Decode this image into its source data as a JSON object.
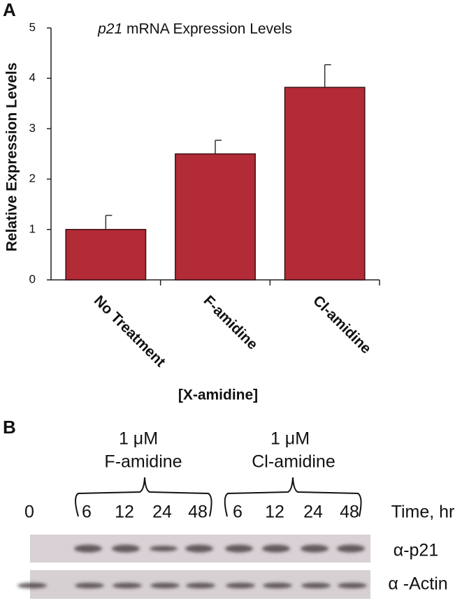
{
  "chart_data": {
    "type": "bar",
    "panel_label": "A",
    "title": "p21 mRNA Expression Levels",
    "y_label": "Relative Expression Levels",
    "x_label": "[X-amidine]",
    "categories": [
      "No Treatment",
      "F-amidine",
      "Cl-amidine"
    ],
    "values": [
      1.0,
      2.5,
      3.82
    ],
    "errors": [
      0.28,
      0.27,
      0.45
    ],
    "color": "#b32b37",
    "ylim": [
      0,
      5
    ],
    "yticks": [
      0,
      1,
      2,
      3,
      4,
      5
    ]
  },
  "panel_b": {
    "label": "B",
    "groups": [
      {
        "concentration": "1 μM",
        "name": "F-amidine"
      },
      {
        "concentration": "1 μM",
        "name": "Cl-amidine"
      }
    ],
    "lanes": [
      "0",
      "6",
      "12",
      "24",
      "48",
      "6",
      "12",
      "24",
      "48"
    ],
    "time_label": "Time, hr",
    "blots": [
      "α-p21",
      "α -Actin"
    ]
  }
}
